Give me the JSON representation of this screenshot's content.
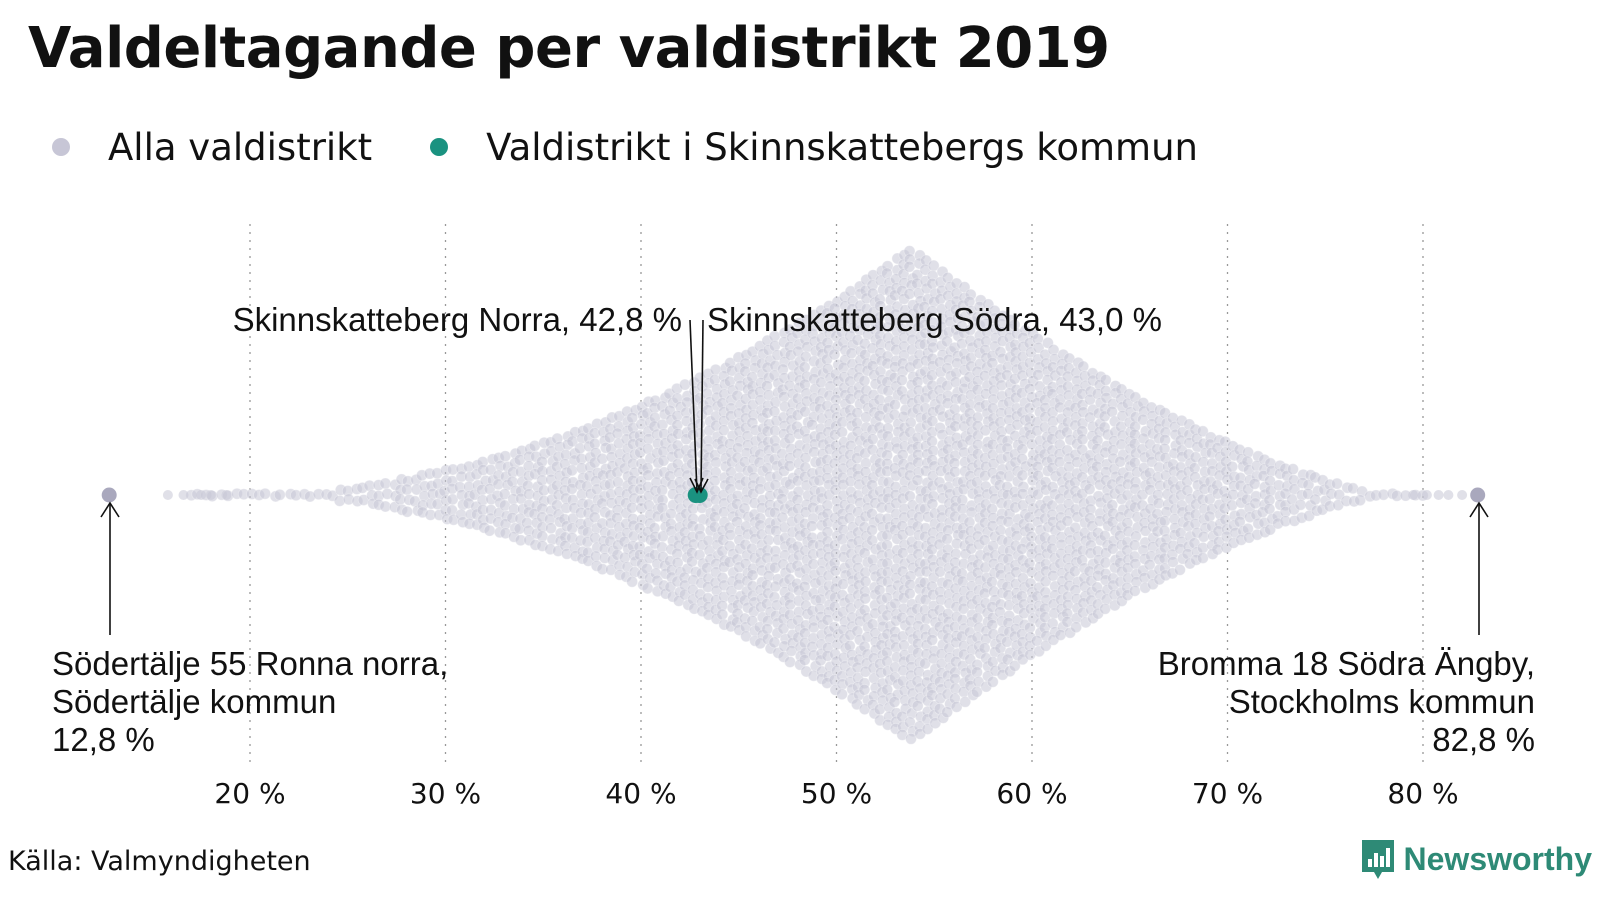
{
  "title": "Valdeltagande per valdistrikt 2019",
  "legend": {
    "all_label": "Alla valdistrikt",
    "highlight_label": "Valdistrikt i Skinnskattebergs kommun"
  },
  "colors": {
    "all_dots": "#c7c6d6",
    "highlight": "#1a9280",
    "extreme_dots": "#a9a8bd",
    "grid": "#999999",
    "brand": "#2e8a76"
  },
  "source": "Källa: Valmyndigheten",
  "brand": {
    "name": "Newsworthy",
    "icon": "newsworthy-logo-icon"
  },
  "chart_data": {
    "type": "scatter",
    "subtype": "beeswarm",
    "title": "Valdeltagande per valdistrikt 2019",
    "xlabel": "",
    "ylabel": "",
    "xlim": [
      12.8,
      82.8
    ],
    "x_ticks": [
      20,
      30,
      40,
      50,
      60,
      70,
      80
    ],
    "x_tick_labels": [
      "20 %",
      "30 %",
      "40 %",
      "50 %",
      "60 %",
      "70 %",
      "80 %"
    ],
    "grid": "vertical dotted",
    "legend_position": "top-left",
    "series": [
      {
        "name": "Alla valdistrikt",
        "color": "#c7c6d6"
      },
      {
        "name": "Valdistrikt i Skinnskattebergs kommun",
        "color": "#1a9280"
      }
    ],
    "distribution_approx": {
      "min": 12.8,
      "max": 82.8,
      "peak": 53.8
    },
    "highlighted_points": [
      {
        "label": "Skinnskatteberg Norra, 42,8 %",
        "x": 42.8
      },
      {
        "label": "Skinnskatteberg Södra, 43,0 %",
        "x": 43.0
      }
    ],
    "extreme_points": [
      {
        "label_lines": [
          "Södertälje 55 Ronna norra,",
          "Södertälje kommun",
          "12,8 %"
        ],
        "x": 12.8
      },
      {
        "label_lines": [
          "Bromma 18 Södra Ängby,",
          "Stockholms kommun",
          "82,8 %"
        ],
        "x": 82.8
      }
    ]
  }
}
